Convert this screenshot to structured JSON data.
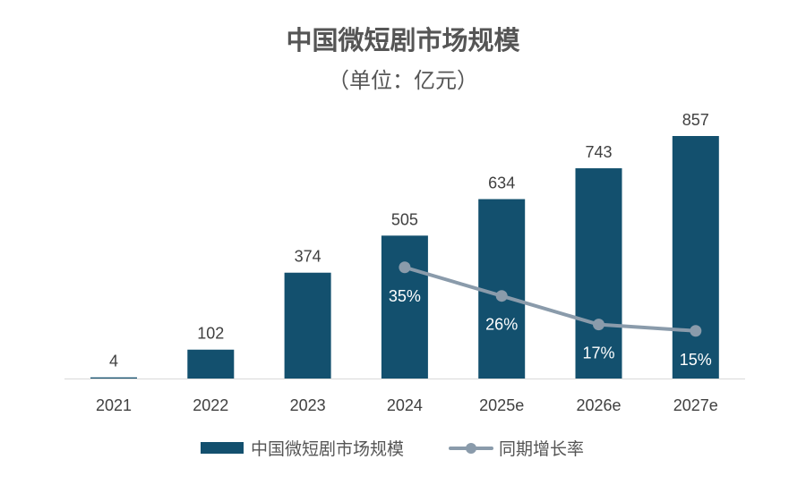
{
  "chart_data": {
    "type": "bar",
    "title": "中国微短剧市场规模",
    "subtitle": "（单位：亿元）",
    "categories": [
      "2021",
      "2022",
      "2023",
      "2024",
      "2025e",
      "2026e",
      "2027e"
    ],
    "series": [
      {
        "name": "中国微短剧市场规模",
        "type": "bar",
        "values": [
          4,
          102,
          374,
          505,
          634,
          743,
          857
        ],
        "labels": [
          "4",
          "102",
          "374",
          "505",
          "634",
          "743",
          "857"
        ],
        "color": "#13506e"
      },
      {
        "name": "同期增长率",
        "type": "line",
        "values": [
          null,
          null,
          null,
          35,
          26,
          17,
          15
        ],
        "labels": [
          "",
          "",
          "",
          "35%",
          "26%",
          "17%",
          "15%"
        ],
        "color": "#8a9bab"
      }
    ],
    "ylim": [
      0,
      857
    ],
    "y2lim": [
      0,
      75
    ],
    "grid": false,
    "legend_position": "bottom"
  }
}
